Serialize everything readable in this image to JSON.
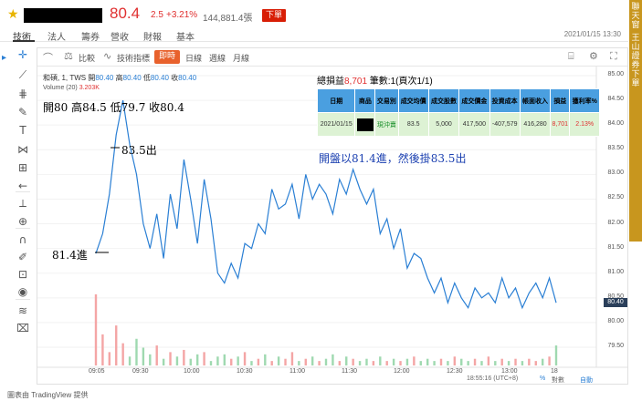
{
  "header": {
    "price": "80.4",
    "change": "2.5",
    "change_pct": "+3.21%",
    "volume": "144,881.4張",
    "order_button": "下單"
  },
  "tabs": [
    "技術",
    "法人",
    "籌券",
    "營收",
    "財報",
    "基本"
  ],
  "datetime": "2021/01/15 13:30",
  "side_panel": [
    "聯",
    "天",
    "窗",
    "",
    "王",
    "山",
    "證",
    "券",
    "下",
    "單"
  ],
  "chart_toolbar": {
    "compare": "比較",
    "indicators": "技術指標",
    "timeframes": [
      "即時",
      "日線",
      "週線",
      "月線"
    ]
  },
  "legend": {
    "symbol": "和碩, 1, TWS",
    "open_label": "開",
    "open": "80.40",
    "high_label": "高",
    "high": "80.40",
    "low_label": "低",
    "low": "80.40",
    "close_label": "收",
    "close": "80.40",
    "volume_label": "Volume (20)",
    "volume_value": "3.203K"
  },
  "annotations": {
    "ohlc": "開80 高84.5 低79.7 收80.4",
    "exit": "83.5出",
    "entry": "81.4進",
    "note": "開盤以81.4進，然後掛83.5出"
  },
  "trade_summary": {
    "label": "總損益",
    "pnl": "8,701",
    "rest": " 筆數:1(頁次1/1)"
  },
  "trade_table": {
    "headers": [
      "日期",
      "商品",
      "交易別",
      "成交均價",
      "成交股數",
      "成交價金",
      "投資成本",
      "帳面收入",
      "損益",
      "獲利率%"
    ],
    "row": [
      "2021/01/15",
      "",
      "現沖賣",
      "83.5",
      "5,000",
      "417,500",
      "-407,579",
      "416,280",
      "8,701",
      "2.13%"
    ]
  },
  "price_axis": [
    "85.00",
    "84.50",
    "84.00",
    "83.50",
    "83.00",
    "82.50",
    "82.00",
    "81.50",
    "81.00",
    "80.50",
    "80.00",
    "79.50"
  ],
  "last_price_label": "80.40",
  "time_axis": [
    "09:05",
    "09:30",
    "10:00",
    "10:30",
    "11:00",
    "11:30",
    "12:00",
    "12:30",
    "13:00",
    "18"
  ],
  "bottom_bar": {
    "clock": "18:55:16 (UTC+8)",
    "pct": "%",
    "log": "對數",
    "auto": "自動"
  },
  "footer": "圖表由 TradingView 提供",
  "chart_data": {
    "type": "line",
    "title": "和碩, 1, TWS",
    "xlabel": "",
    "ylabel": "",
    "ylim": [
      79.5,
      85.0
    ],
    "x": [
      "09:01",
      "09:04",
      "09:05",
      "09:07",
      "09:08",
      "09:10",
      "09:13",
      "09:16",
      "09:19",
      "09:22",
      "09:25",
      "09:28",
      "09:31",
      "09:34",
      "09:37",
      "09:40",
      "09:44",
      "09:47",
      "09:50",
      "09:54",
      "09:57",
      "10:00",
      "10:03",
      "10:06",
      "10:09",
      "10:13",
      "10:16",
      "10:20",
      "10:24",
      "10:28",
      "10:32",
      "10:35",
      "10:39",
      "10:43",
      "10:47",
      "10:50",
      "10:55",
      "11:00",
      "11:04",
      "11:08",
      "11:12",
      "11:16",
      "11:20",
      "11:25",
      "11:30",
      "11:35",
      "11:40",
      "11:45",
      "11:50",
      "11:55",
      "12:00",
      "12:05",
      "12:10",
      "12:15",
      "12:20",
      "12:25",
      "12:30",
      "12:35",
      "12:40",
      "12:45",
      "12:50",
      "12:55",
      "13:00",
      "13:05",
      "13:10",
      "13:15",
      "13:20",
      "13:25",
      "13:30"
    ],
    "series": [
      {
        "values": [
          81.4,
          81.8,
          82.6,
          83.8,
          84.5,
          83.6,
          83.0,
          82.0,
          81.5,
          82.2,
          81.3,
          82.6,
          81.9,
          83.3,
          82.5,
          81.6,
          82.9,
          82.1,
          81.0,
          80.8,
          81.2,
          80.9,
          81.6,
          81.5,
          82.0,
          81.8,
          82.7,
          82.3,
          82.4,
          82.8,
          82.1,
          83.0,
          82.5,
          82.8,
          82.6,
          82.2,
          82.9,
          82.6,
          83.1,
          82.7,
          82.4,
          82.7,
          81.8,
          82.1,
          81.5,
          81.9,
          81.1,
          81.4,
          81.3,
          80.9,
          80.6,
          80.9,
          80.4,
          80.8,
          80.5,
          80.3,
          80.7,
          80.5,
          80.6,
          80.4,
          80.9,
          80.5,
          80.7,
          80.3,
          80.6,
          80.8,
          80.5,
          80.9,
          80.4
        ]
      }
    ],
    "volume": [
      3.2,
      1.4,
      0.6,
      1.8,
      1.0,
      0.4,
      1.2,
      0.8,
      0.5,
      0.9,
      0.3,
      0.6,
      0.4,
      0.7,
      0.3,
      0.5,
      0.6,
      0.2,
      0.4,
      0.5,
      0.3,
      0.4,
      0.6,
      0.2,
      0.3,
      0.5,
      0.2,
      0.4,
      0.3,
      0.6,
      0.2,
      0.3,
      0.4,
      0.2,
      0.3,
      0.5,
      0.2,
      0.4,
      0.3,
      0.2,
      0.3,
      0.2,
      0.4,
      0.2,
      0.3,
      0.2,
      0.3,
      0.4,
      0.2,
      0.3,
      0.2,
      0.3,
      0.2,
      0.4,
      0.3,
      0.2,
      0.3,
      0.2,
      0.4,
      0.2,
      0.3,
      0.2,
      0.3,
      0.2,
      0.3,
      0.2,
      0.3,
      0.4,
      0.9
    ]
  }
}
